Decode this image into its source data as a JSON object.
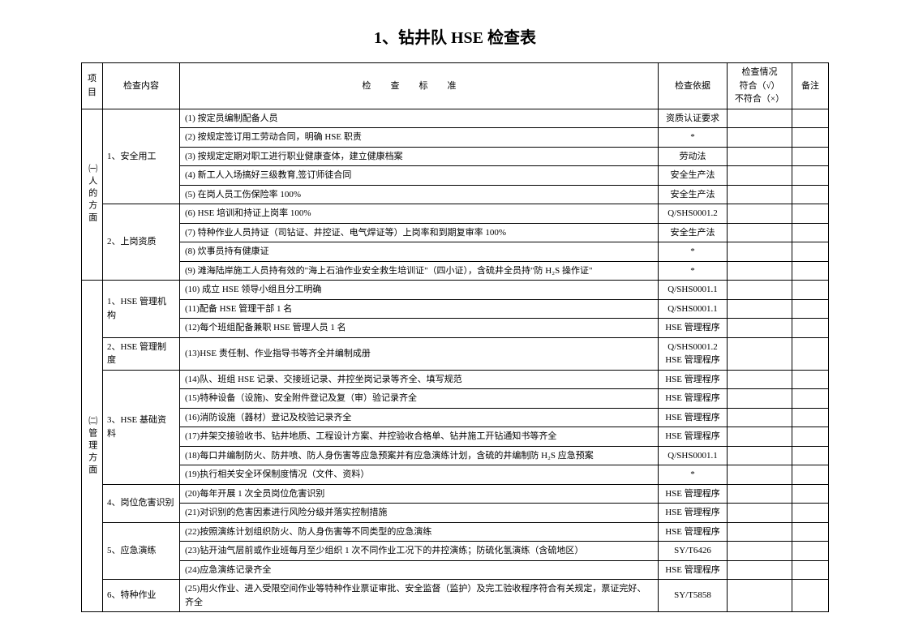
{
  "title": "1、钻井队 HSE 检查表",
  "headers": {
    "proj": "项目",
    "content": "检查内容",
    "standard": "检查标准",
    "basis": "检查依据",
    "status": "检查情况\n符合（√）\n不符合（×）",
    "note": "备注"
  },
  "section1": {
    "label": "㈠人的方面",
    "group1": {
      "label": "1、安全用工",
      "r1": {
        "std": "(1) 按定员编制配备人员",
        "basis": "资质认证要求"
      },
      "r2": {
        "std": "(2) 按规定签订用工劳动合同，明确 HSE 职责",
        "basis": "*"
      },
      "r3": {
        "std": "(3) 按规定定期对职工进行职业健康查体，建立健康档案",
        "basis": "劳动法"
      },
      "r4": {
        "std": "(4) 新工人入场搞好三级教育,签订师徒合同",
        "basis": "安全生产法"
      },
      "r5": {
        "std": "(5) 在岗人员工伤保险率 100%",
        "basis": "安全生产法"
      }
    },
    "group2": {
      "label": "2、上岗资质",
      "r1": {
        "std": "(6) HSE 培训和持证上岗率 100%",
        "basis": "Q/SHS0001.2"
      },
      "r2": {
        "std": "(7) 特种作业人员持证（司钻证、井控证、电气焊证等）上岗率和到期复审率 100%",
        "basis": "安全生产法"
      },
      "r3": {
        "std": "(8) 炊事员持有健康证",
        "basis": "*"
      },
      "r4": {
        "std": "(9) 滩海陆岸施工人员持有效的\"海上石油作业安全救生培训证\"（四小证），含硫井全员持\"防 H₂S 操作证\"",
        "basis": "*"
      }
    }
  },
  "section2": {
    "label": "㈡管理方面",
    "group1": {
      "label": "1、HSE 管理机构",
      "r1": {
        "std": "(10) 成立 HSE 领导小组且分工明确",
        "basis": "Q/SHS0001.1"
      },
      "r2": {
        "std": "(11)配备 HSE 管理干部 1 名",
        "basis": "Q/SHS0001.1"
      },
      "r3": {
        "std": "(12)每个班组配备兼职 HSE 管理人员 1 名",
        "basis": "HSE 管理程序"
      }
    },
    "group2": {
      "label": "2、HSE 管理制度",
      "r1": {
        "std": "(13)HSE 责任制、作业指导书等齐全并编制成册",
        "basis": "Q/SHS0001.2\nHSE 管理程序"
      }
    },
    "group3": {
      "label": "3、HSE 基础资料",
      "r1": {
        "std": "(14)队、班组 HSE 记录、交接班记录、井控坐岗记录等齐全、填写规范",
        "basis": "HSE 管理程序"
      },
      "r2": {
        "std": "(15)特种设备（设施)、安全附件登记及复（审）验记录齐全",
        "basis": "HSE 管理程序"
      },
      "r3": {
        "std": "(16)消防设施（器材）登记及校验记录齐全",
        "basis": "HSE 管理程序"
      },
      "r4": {
        "std": "(17)井架交接验收书、钻井地质、工程设计方案、井控验收合格单、钻井施工开钻通知书等齐全",
        "basis": "HSE 管理程序"
      },
      "r5": {
        "std": "(18)每口井编制防火、防井喷、防人身伤害等应急预案并有应急演练计划，含硫的井编制防 H₂S 应急预案",
        "basis": "Q/SHS0001.1"
      },
      "r6": {
        "std": "(19)执行相关安全环保制度情况（文件、资料）",
        "basis": "*"
      }
    },
    "group4": {
      "label": "4、岗位危害识别",
      "r1": {
        "std": "(20)每年开展 1 次全员岗位危害识别",
        "basis": "HSE 管理程序"
      },
      "r2": {
        "std": "(21)对识别的危害因素进行风险分级并落实控制措施",
        "basis": "HSE 管理程序"
      }
    },
    "group5": {
      "label": "5、应急演练",
      "r1": {
        "std": "(22)按照演练计划组织防火、防人身伤害等不同类型的应急演练",
        "basis": "HSE 管理程序"
      },
      "r2": {
        "std": "(23)钻开油气层前或作业班每月至少组织 1 次不同作业工况下的井控演练；防硫化氢演练（含硫地区）",
        "basis": "SY/T6426"
      },
      "r3": {
        "std": "(24)应急演练记录齐全",
        "basis": "HSE 管理程序"
      }
    },
    "group6": {
      "label": "6、特种作业",
      "r1": {
        "std": "(25)用火作业、进入受限空间作业等特种作业票证审批、安全监督（监护）及完工验收程序符合有关规定，票证完好、齐全",
        "basis": "SY/T5858"
      }
    }
  }
}
